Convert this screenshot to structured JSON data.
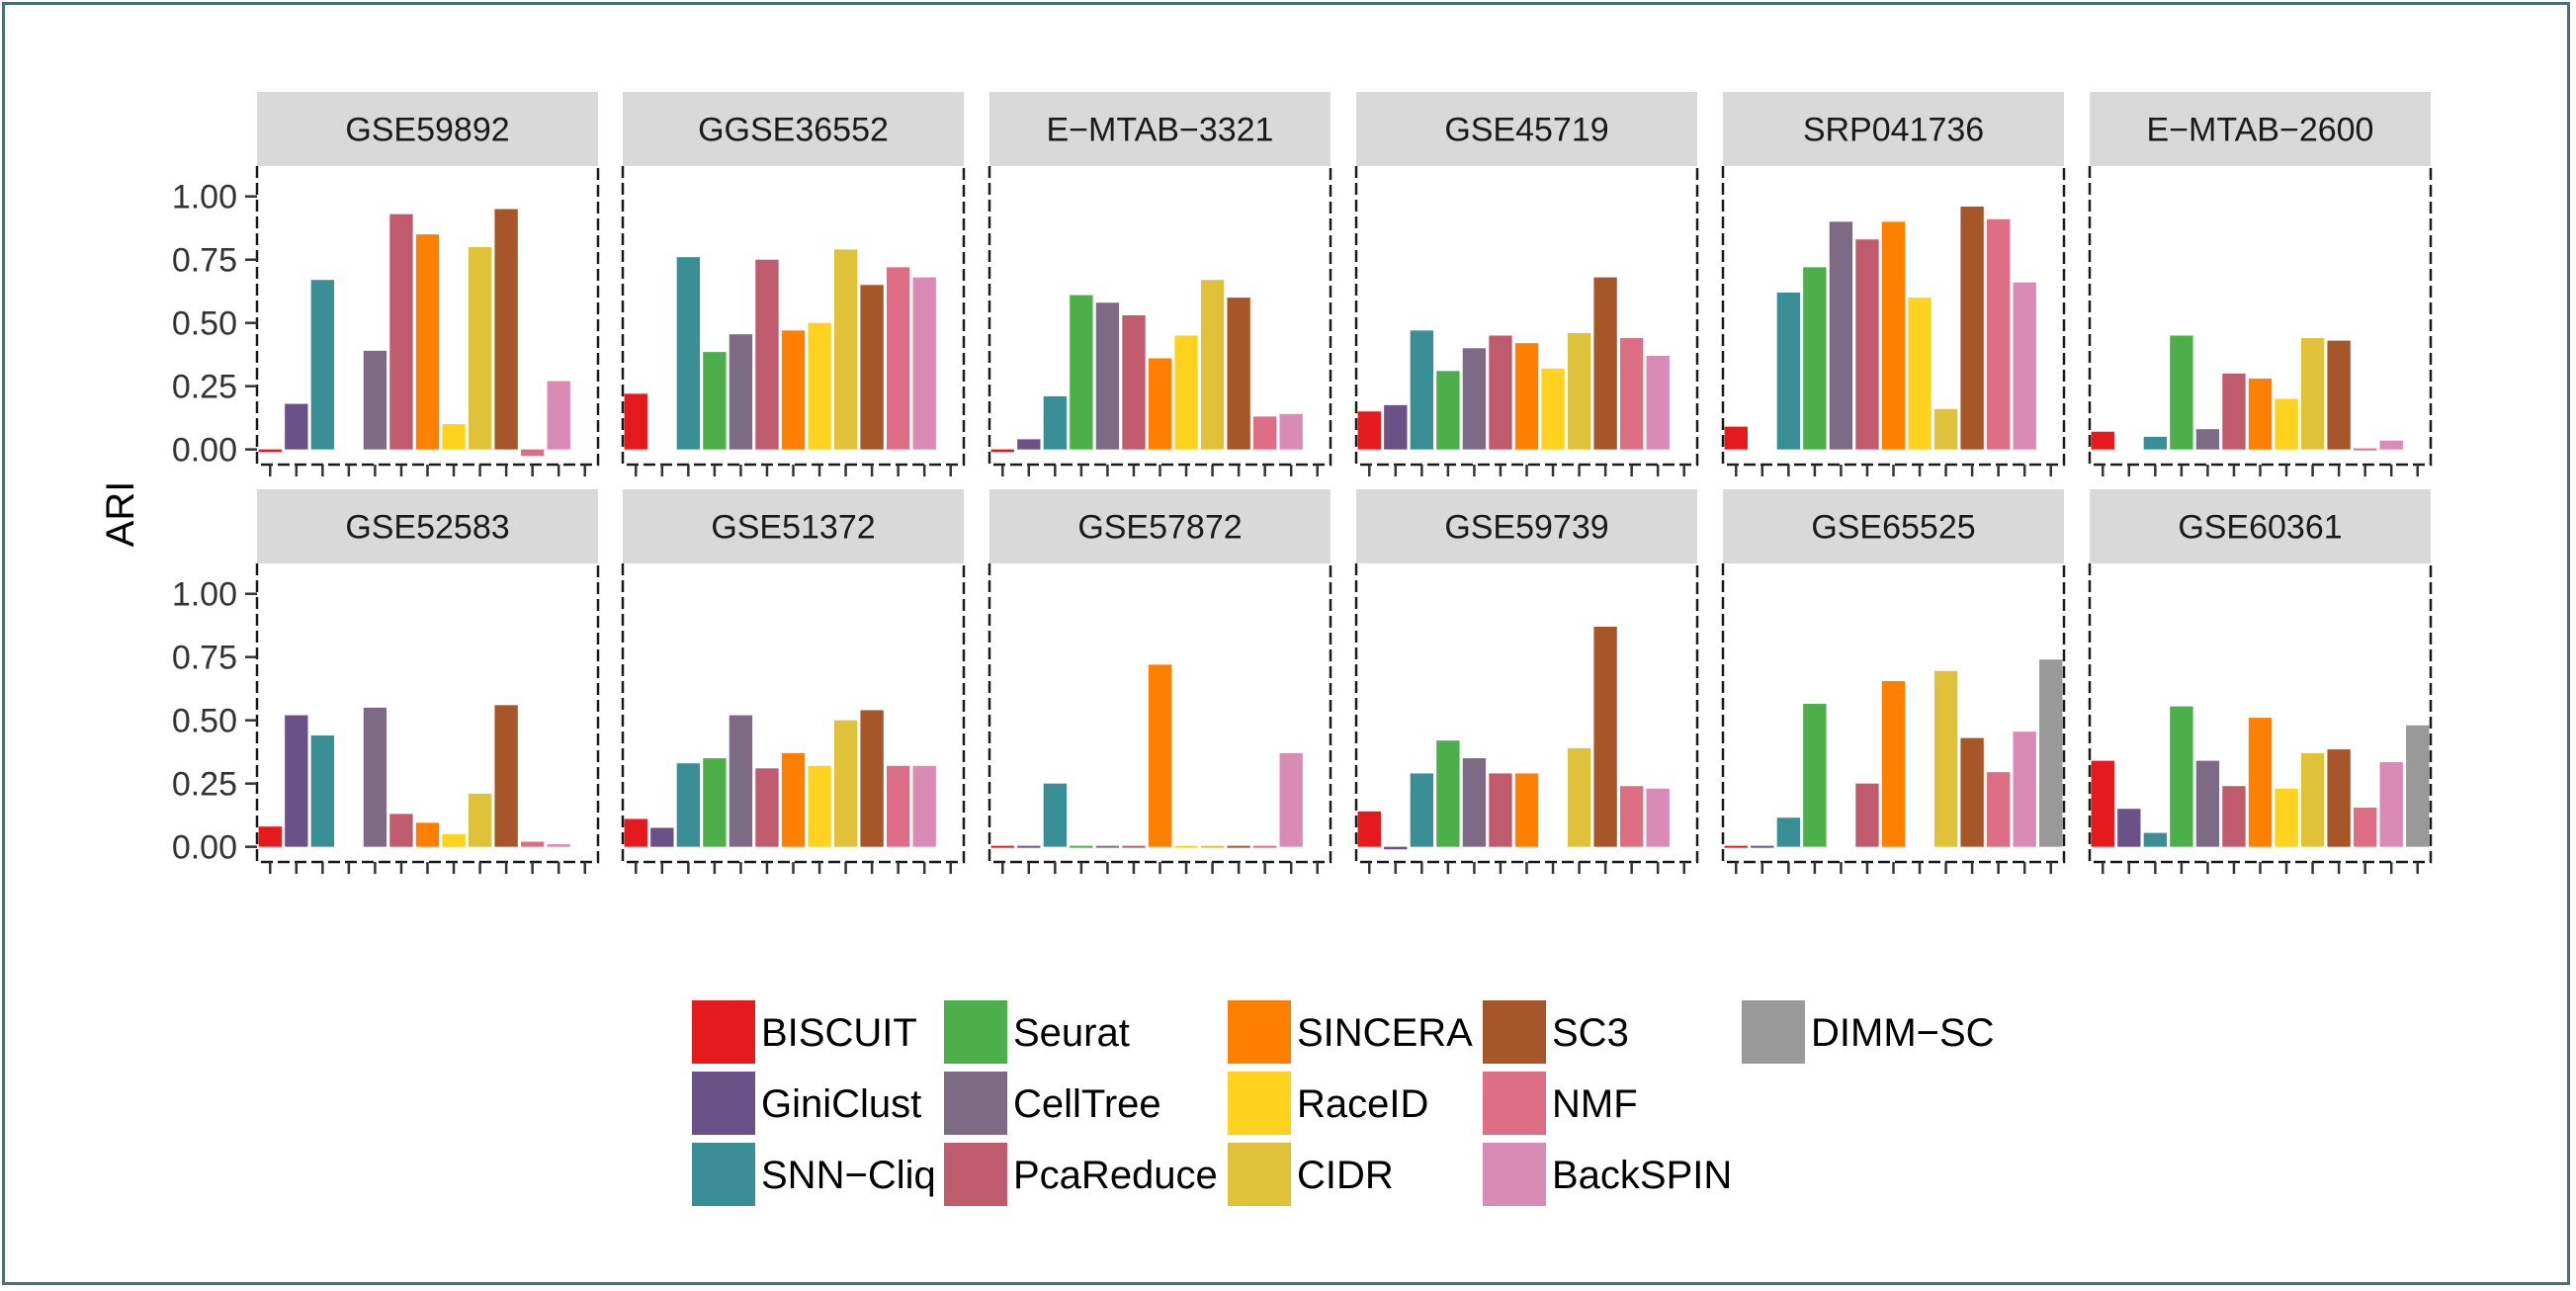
{
  "chart_data": {
    "type": "bar",
    "ylabel": "ARI",
    "xlabel": "",
    "ylim": [
      -0.06,
      1.12
    ],
    "yticks": [
      "0.00",
      "0.25",
      "0.50",
      "0.75",
      "1.00"
    ],
    "methods": [
      "BISCUIT",
      "GiniClust",
      "SNN−Cliq",
      "Seurat",
      "CellTree",
      "PcaReduce",
      "SINCERA",
      "RaceID",
      "CIDR",
      "SC3",
      "NMF",
      "BackSPIN",
      "DIMM−SC"
    ],
    "colors": [
      "#e41a1c",
      "#6a5287",
      "#3a8f96",
      "#4daf4a",
      "#7d6b86",
      "#c05a6d",
      "#ff7f00",
      "#ffd21f",
      "#e0c23a",
      "#a65628",
      "#dd6e85",
      "#d98ab5",
      "#999999"
    ],
    "legend_position": "bottom",
    "facets": [
      {
        "title": "GSE59892",
        "values": [
          -0.01,
          0.18,
          0.67,
          null,
          0.39,
          0.93,
          0.85,
          0.1,
          0.8,
          0.95,
          -0.025,
          0.27,
          null
        ]
      },
      {
        "title": "GGSE36552",
        "values": [
          0.22,
          null,
          0.76,
          0.385,
          0.455,
          0.75,
          0.47,
          0.5,
          0.79,
          0.65,
          0.72,
          0.68,
          null
        ]
      },
      {
        "title": "E−MTAB−3321",
        "values": [
          -0.01,
          0.04,
          0.21,
          0.61,
          0.58,
          0.53,
          0.36,
          0.45,
          0.67,
          0.6,
          0.13,
          0.14,
          null
        ]
      },
      {
        "title": "GSE45719",
        "values": [
          0.15,
          0.175,
          0.47,
          0.31,
          0.4,
          0.45,
          0.42,
          0.32,
          0.46,
          0.68,
          0.44,
          0.37,
          null
        ]
      },
      {
        "title": "SRP041736",
        "values": [
          0.09,
          null,
          0.62,
          0.72,
          0.9,
          0.83,
          0.9,
          0.6,
          0.16,
          0.96,
          0.91,
          0.66,
          null
        ]
      },
      {
        "title": "E−MTAB−2600",
        "values": [
          0.07,
          null,
          0.05,
          0.45,
          0.08,
          0.3,
          0.28,
          0.2,
          0.44,
          0.43,
          -0.005,
          0.035,
          null
        ]
      },
      {
        "title": "GSE52583",
        "values": [
          0.08,
          0.52,
          0.44,
          null,
          0.55,
          0.13,
          0.095,
          0.05,
          0.21,
          0.56,
          0.02,
          0.01,
          null
        ]
      },
      {
        "title": "GSE51372",
        "values": [
          0.11,
          0.075,
          0.33,
          0.35,
          0.52,
          0.31,
          0.37,
          0.32,
          0.5,
          0.54,
          0.32,
          0.32,
          null
        ]
      },
      {
        "title": "GSE57872",
        "values": [
          0.0,
          0.0,
          0.25,
          0.0,
          0.0,
          0.0,
          0.72,
          0.0,
          0.0,
          0.0,
          0.0,
          0.37,
          null
        ]
      },
      {
        "title": "GSE59739",
        "values": [
          0.14,
          -0.01,
          0.29,
          0.42,
          0.35,
          0.29,
          0.29,
          null,
          0.39,
          0.87,
          0.24,
          0.23,
          null
        ]
      },
      {
        "title": "GSE65525",
        "values": [
          0.0,
          0.0,
          0.115,
          0.565,
          null,
          0.25,
          0.655,
          null,
          0.695,
          0.43,
          0.295,
          0.455,
          0.74
        ]
      },
      {
        "title": "GSE60361",
        "values": [
          0.34,
          0.15,
          0.055,
          0.555,
          0.34,
          0.24,
          0.51,
          0.23,
          0.37,
          0.385,
          0.155,
          0.335,
          0.48
        ]
      }
    ]
  }
}
